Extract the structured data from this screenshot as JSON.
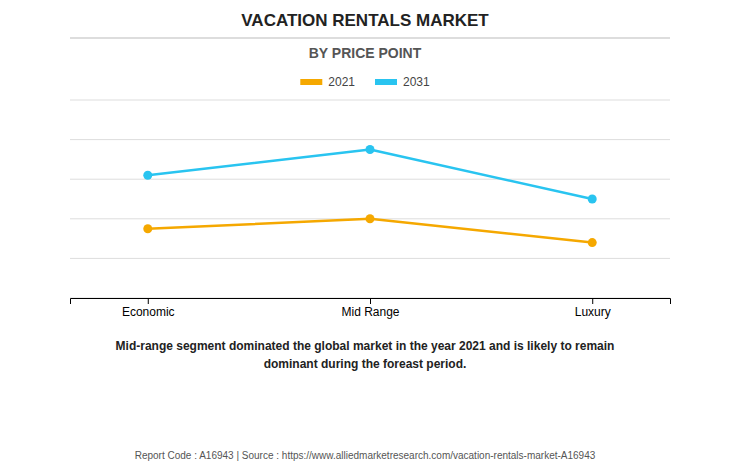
{
  "chart_data": {
    "type": "line",
    "title": "VACATION RENTALS MARKET",
    "subtitle": "BY PRICE POINT",
    "categories": [
      "Economic",
      "Mid Range",
      "Luxury"
    ],
    "series": [
      {
        "name": "2021",
        "color": "#F5A800",
        "values": [
          3.5,
          4.0,
          2.8
        ],
        "marker": "circle"
      },
      {
        "name": "2031",
        "color": "#29C4F0",
        "values": [
          6.2,
          7.5,
          5.0
        ],
        "marker": "circle"
      }
    ],
    "ylim": [
      0,
      10
    ],
    "yticks": [
      0,
      2,
      4,
      6,
      8,
      10
    ],
    "grid": true,
    "legend": "top",
    "tick_labels": "x",
    "annotations": [
      "Mid-range segment dominated the global market in the year 2021 and is likely to remain\ndominant during the foreast period.",
      "Report Code : A16943  |  Source : https://www.alliedmarketresearch.com/vacation-rentals-market-A16943"
    ]
  }
}
